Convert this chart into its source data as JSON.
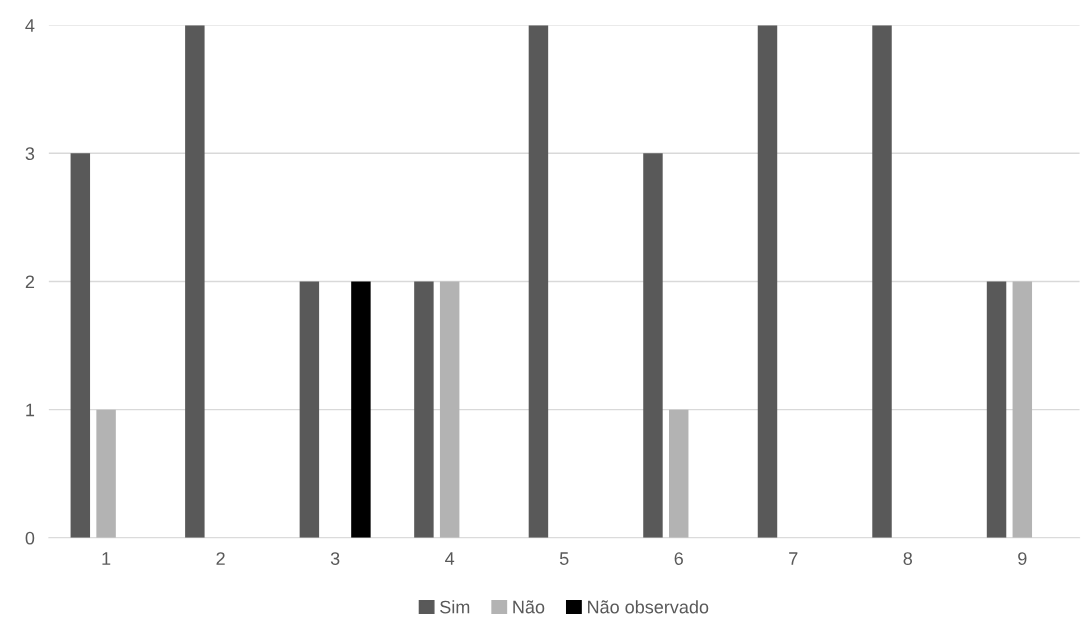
{
  "chart_data": {
    "type": "bar",
    "categories": [
      "1",
      "2",
      "3",
      "4",
      "5",
      "6",
      "7",
      "8",
      "9"
    ],
    "series": [
      {
        "name": "Sim",
        "color": "#595959",
        "values": [
          3,
          4,
          2,
          2,
          4,
          3,
          4,
          4,
          2
        ]
      },
      {
        "name": "Não",
        "color": "#b3b3b3",
        "values": [
          1,
          0,
          0,
          2,
          0,
          1,
          0,
          0,
          2
        ]
      },
      {
        "name": "Não observado",
        "color": "#000000",
        "values": [
          0,
          0,
          2,
          0,
          0,
          0,
          0,
          0,
          0
        ]
      }
    ],
    "ylim": [
      0,
      4
    ],
    "yticks": [
      0,
      1,
      2,
      3,
      4
    ],
    "grid": "y",
    "legend": "bottom"
  }
}
